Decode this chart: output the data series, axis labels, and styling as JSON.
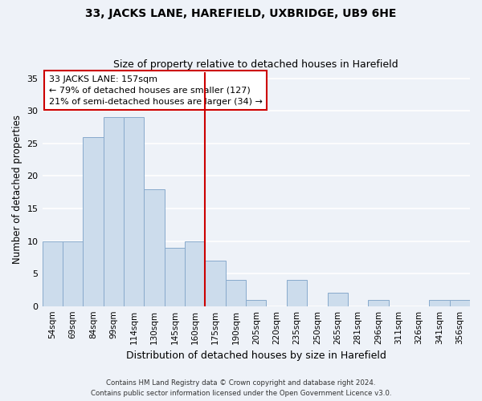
{
  "title": "33, JACKS LANE, HAREFIELD, UXBRIDGE, UB9 6HE",
  "subtitle": "Size of property relative to detached houses in Harefield",
  "xlabel": "Distribution of detached houses by size in Harefield",
  "ylabel": "Number of detached properties",
  "bar_labels": [
    "54sqm",
    "69sqm",
    "84sqm",
    "99sqm",
    "114sqm",
    "130sqm",
    "145sqm",
    "160sqm",
    "175sqm",
    "190sqm",
    "205sqm",
    "220sqm",
    "235sqm",
    "250sqm",
    "265sqm",
    "281sqm",
    "296sqm",
    "311sqm",
    "326sqm",
    "341sqm",
    "356sqm"
  ],
  "bar_values": [
    10,
    10,
    26,
    29,
    29,
    18,
    9,
    10,
    7,
    4,
    1,
    0,
    4,
    0,
    2,
    0,
    1,
    0,
    0,
    1,
    1
  ],
  "bar_color": "#ccdcec",
  "bar_edge_color": "#88aacc",
  "vline_color": "#cc0000",
  "annotation_text": "33 JACKS LANE: 157sqm\n← 79% of detached houses are smaller (127)\n21% of semi-detached houses are larger (34) →",
  "annotation_box_color": "#ffffff",
  "annotation_box_edge": "#cc0000",
  "ylim": [
    0,
    36
  ],
  "yticks": [
    0,
    5,
    10,
    15,
    20,
    25,
    30,
    35
  ],
  "footer_line1": "Contains HM Land Registry data © Crown copyright and database right 2024.",
  "footer_line2": "Contains public sector information licensed under the Open Government Licence v3.0.",
  "background_color": "#eef2f8",
  "grid_color": "#ffffff",
  "vline_index": 7.5
}
